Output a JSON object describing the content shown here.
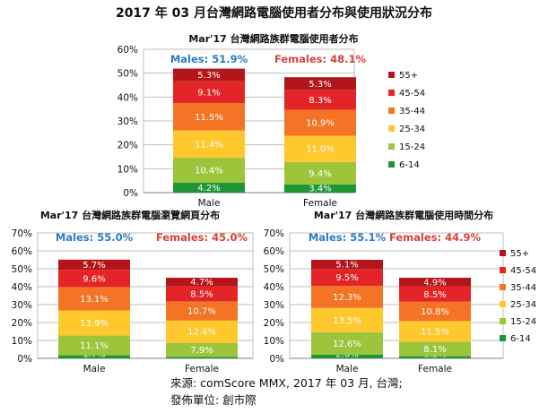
{
  "title": "2017 年 03 月台灣網路電腦使用者分布與使用狀況分布",
  "source": {
    "line1": "來源: comScore MMX, 2017 年 03 月, 台灣;",
    "line2": "發佈單位: 創市際"
  },
  "colors": {
    "55+": "#b3151b",
    "45-54": "#e42527",
    "35-44": "#f47425",
    "25-34": "#ffc82d",
    "15-24": "#9cc53c",
    "6-14": "#1e9636",
    "males_label": "#2f7ac0",
    "females_label": "#d6423a",
    "grid": "#bfbfbf",
    "axis": "#7f7f7f"
  },
  "chart_data": [
    {
      "type": "bar",
      "stacked": true,
      "title": "Mar'17 台灣網路族群電腦使用者分布",
      "categories": [
        "Male",
        "Female"
      ],
      "ylim": [
        0,
        60
      ],
      "yticks": [
        "0%",
        "10%",
        "20%",
        "30%",
        "40%",
        "50%",
        "60%"
      ],
      "grid": true,
      "legend_position": "right",
      "totals": [
        "Males: 51.9%",
        "Females: 48.1%"
      ],
      "series": [
        {
          "name": "6-14",
          "values": [
            4.2,
            3.4
          ],
          "labels": [
            "4.2%",
            "3.4%"
          ]
        },
        {
          "name": "15-24",
          "values": [
            10.4,
            9.4
          ],
          "labels": [
            "10.4%",
            "9.4%"
          ]
        },
        {
          "name": "25-34",
          "values": [
            11.4,
            11.0
          ],
          "labels": [
            "11.4%",
            "11.0%"
          ]
        },
        {
          "name": "35-44",
          "values": [
            11.5,
            10.9
          ],
          "labels": [
            "11.5%",
            "10.9%"
          ]
        },
        {
          "name": "45-54",
          "values": [
            9.1,
            8.3
          ],
          "labels": [
            "9.1%",
            "8.3%"
          ]
        },
        {
          "name": "55+",
          "values": [
            5.3,
            5.3
          ],
          "labels": [
            "5.3%",
            "5.3%"
          ]
        }
      ]
    },
    {
      "type": "bar",
      "stacked": true,
      "title": "Mar'17 台灣網路族群電腦瀏覽網頁分布",
      "categories": [
        "Male",
        "Female"
      ],
      "ylim": [
        0,
        70
      ],
      "yticks": [
        "0%",
        "10%",
        "20%",
        "30%",
        "40%",
        "50%",
        "60%",
        "70%"
      ],
      "grid": true,
      "legend_position": "none",
      "totals": [
        "Males: 55.0%",
        "Females: 45.0%"
      ],
      "series": [
        {
          "name": "6-14",
          "values": [
            1.7,
            0.8
          ],
          "labels": [
            "1.7%",
            "0.8%"
          ]
        },
        {
          "name": "15-24",
          "values": [
            11.1,
            7.9
          ],
          "labels": [
            "11.1%",
            "7.9%"
          ]
        },
        {
          "name": "25-34",
          "values": [
            13.9,
            12.4
          ],
          "labels": [
            "13.9%",
            "12.4%"
          ]
        },
        {
          "name": "35-44",
          "values": [
            13.1,
            10.7
          ],
          "labels": [
            "13.1%",
            "10.7%"
          ]
        },
        {
          "name": "45-54",
          "values": [
            9.6,
            8.5
          ],
          "labels": [
            "9.6%",
            "8.5%"
          ]
        },
        {
          "name": "55+",
          "values": [
            5.7,
            4.7
          ],
          "labels": [
            "5.7%",
            "4.7%"
          ]
        }
      ]
    },
    {
      "type": "bar",
      "stacked": true,
      "title": "Mar'17 台灣網路族群電腦使用時間分布",
      "categories": [
        "Male",
        "Female"
      ],
      "ylim": [
        0,
        70
      ],
      "yticks": [
        "0%",
        "10%",
        "20%",
        "30%",
        "40%",
        "50%",
        "60%",
        "70%"
      ],
      "grid": true,
      "legend_position": "right",
      "totals": [
        "Males: 55.1%",
        "Females: 44.9%"
      ],
      "series": [
        {
          "name": "6-14",
          "values": [
            2.0,
            1.2
          ],
          "labels": [
            "2.0%",
            "1.2%"
          ]
        },
        {
          "name": "15-24",
          "values": [
            12.6,
            8.1
          ],
          "labels": [
            "12.6%",
            "8.1%"
          ]
        },
        {
          "name": "25-34",
          "values": [
            13.5,
            11.5
          ],
          "labels": [
            "13.5%",
            "11.5%"
          ]
        },
        {
          "name": "35-44",
          "values": [
            12.3,
            10.8
          ],
          "labels": [
            "12.3%",
            "10.8%"
          ]
        },
        {
          "name": "45-54",
          "values": [
            9.5,
            8.5
          ],
          "labels": [
            "9.5%",
            "8.5%"
          ]
        },
        {
          "name": "55+",
          "values": [
            5.1,
            4.9
          ],
          "labels": [
            "5.1%",
            "4.9%"
          ]
        }
      ]
    }
  ]
}
